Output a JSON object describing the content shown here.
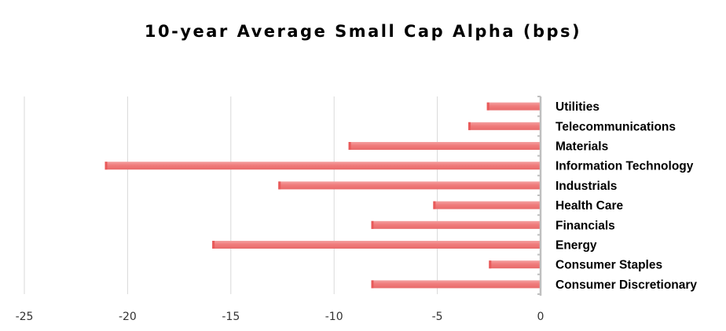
{
  "chart_data": {
    "type": "bar",
    "orientation": "horizontal",
    "title": "10-year Average Small Cap Alpha (bps)",
    "xlabel": "",
    "ylabel": "",
    "xlim": [
      -25,
      0
    ],
    "xticks": [
      -25,
      -20,
      -15,
      -10,
      -5,
      0
    ],
    "xtick_labels": [
      "-25",
      "-20",
      "-15",
      "-10",
      "-5",
      "0"
    ],
    "grid": true,
    "legend": "none",
    "categories": [
      "Utilities",
      "Telecommunications",
      "Materials",
      "Information Technology",
      "Industrials",
      "Health Care",
      "Financials",
      "Energy",
      "Consumer Staples",
      "Consumer Discretionary"
    ],
    "values": [
      -2.6,
      -3.5,
      -9.3,
      -21.1,
      -12.7,
      -5.2,
      -8.2,
      -15.9,
      -2.5,
      -8.2
    ],
    "bar_color": "#f07c7c",
    "bar_color_dark": "#e85a5a"
  }
}
